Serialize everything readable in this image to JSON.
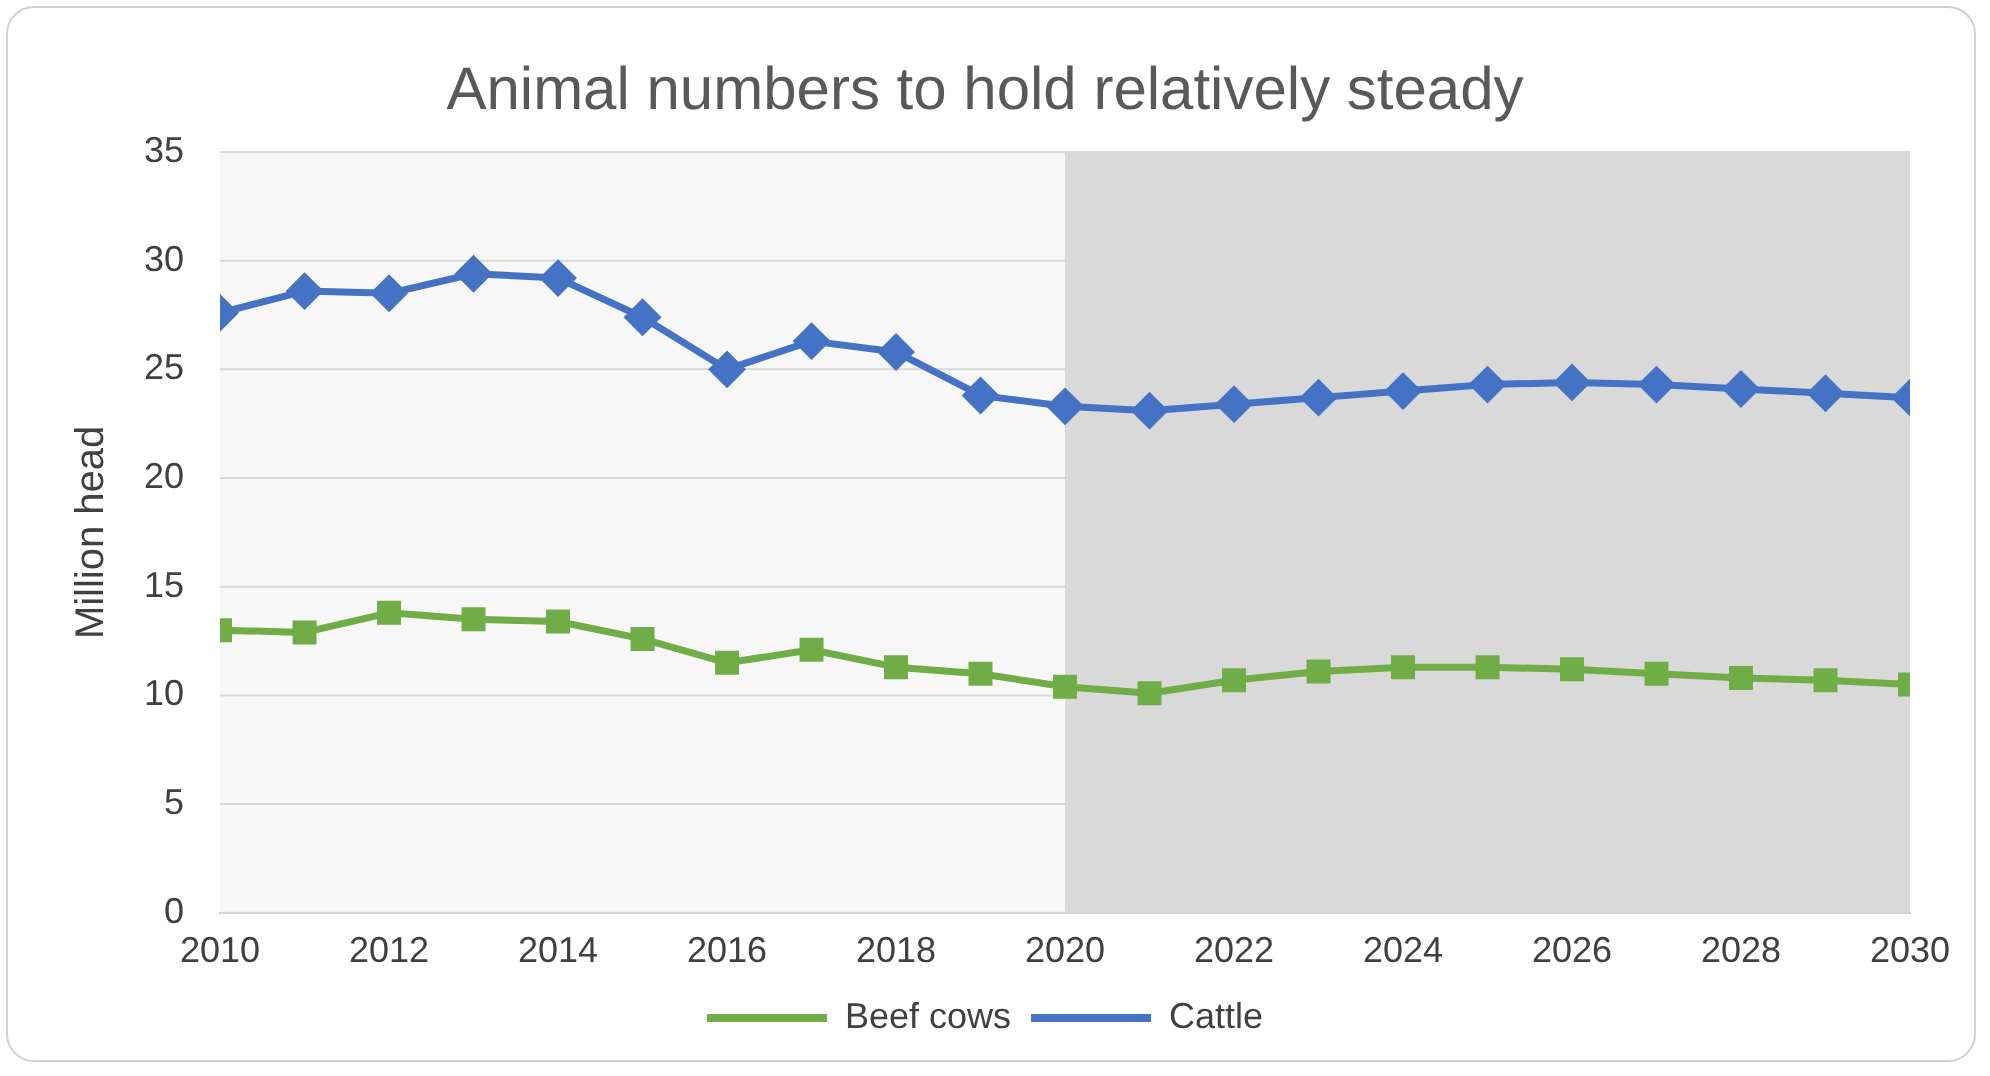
{
  "chart_data": {
    "type": "line",
    "title": "Animal numbers to hold relatively steady",
    "ylabel": "Million head",
    "x": [
      2010,
      2011,
      2012,
      2013,
      2014,
      2015,
      2016,
      2017,
      2018,
      2019,
      2020,
      2021,
      2022,
      2023,
      2024,
      2025,
      2026,
      2027,
      2028,
      2029,
      2030
    ],
    "series": [
      {
        "name": "Beef cows",
        "color": "#70ad47",
        "marker": "square",
        "values": [
          13.0,
          12.9,
          13.8,
          13.5,
          13.4,
          12.6,
          11.5,
          12.1,
          11.3,
          11.0,
          10.4,
          10.1,
          10.7,
          11.1,
          11.3,
          11.3,
          11.2,
          11.0,
          10.8,
          10.7,
          10.5
        ]
      },
      {
        "name": "Cattle",
        "color": "#4472c4",
        "marker": "diamond",
        "values": [
          27.6,
          28.6,
          28.5,
          29.4,
          29.2,
          27.4,
          25.0,
          26.3,
          25.8,
          23.8,
          23.3,
          23.1,
          23.4,
          23.7,
          24.0,
          24.3,
          24.4,
          24.3,
          24.1,
          23.9,
          23.7
        ]
      }
    ],
    "xlim": [
      2010,
      2030
    ],
    "xticks": [
      2010,
      2012,
      2014,
      2016,
      2018,
      2020,
      2022,
      2024,
      2026,
      2028,
      2030
    ],
    "ylim": [
      0,
      35
    ],
    "yticks": [
      0,
      5,
      10,
      15,
      20,
      25,
      30,
      35
    ],
    "bands": [
      {
        "axis": "x",
        "from": 2020,
        "to": 2030,
        "color": "#d9d9d9"
      }
    ],
    "grid": "y",
    "legend": "bottom",
    "line_style": "solid"
  }
}
